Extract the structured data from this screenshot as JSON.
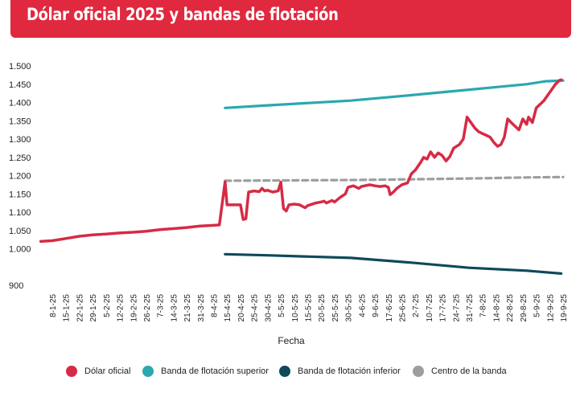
{
  "title": "Dólar oficial 2025 y bandas de flotación",
  "colors": {
    "header_bg": "#e0283f",
    "dolar_oficial": "#d62b45",
    "banda_superior": "#2aa8b0",
    "banda_inferior": "#0e4a5a",
    "centro": "#9e9e9e"
  },
  "chart_data": {
    "type": "line",
    "xlabel": "Fecha",
    "ylabel": "",
    "ylim": [
      900,
      1500
    ],
    "yticks": [
      "900",
      "1.000",
      "1.050",
      "1.100",
      "1.150",
      "1.200",
      "1.250",
      "1.300",
      "1.350",
      "1.400",
      "1.450",
      "1.500"
    ],
    "xticks": [
      "8-1-25",
      "15-1-25",
      "22-1-25",
      "29-1-25",
      "5-2-25",
      "12-2-25",
      "19-2-25",
      "26-2-25",
      "7-3-25",
      "14-3-25",
      "21-3-25",
      "31-3-25",
      "8-4-25",
      "15-4-25",
      "20-4-25",
      "25-4-25",
      "30-4-25",
      "5-5-25",
      "10-5-25",
      "15-5-25",
      "20-5-25",
      "25-5-25",
      "30-5-25",
      "4-6-25",
      "9-6-25",
      "17-6-25",
      "25-6-25",
      "2-7-25",
      "10-7-25",
      "17-7-25",
      "24-7-25",
      "31-7-25",
      "7-8-25",
      "14-8-25",
      "22-8-25",
      "29-8-25",
      "5-9-25",
      "12-9-25",
      "19-9-25"
    ],
    "grid": false,
    "legend_position": "bottom",
    "series": [
      {
        "name": "Dólar oficial",
        "points": [
          [
            "2-1-25",
            1020
          ],
          [
            "8-1-25",
            1022
          ],
          [
            "15-1-25",
            1028
          ],
          [
            "22-1-25",
            1034
          ],
          [
            "29-1-25",
            1038
          ],
          [
            "5-2-25",
            1040
          ],
          [
            "12-2-25",
            1043
          ],
          [
            "19-2-25",
            1045
          ],
          [
            "26-2-25",
            1048
          ],
          [
            "7-3-25",
            1052
          ],
          [
            "14-3-25",
            1055
          ],
          [
            "21-3-25",
            1058
          ],
          [
            "31-3-25",
            1062
          ],
          [
            "8-4-25",
            1064
          ],
          [
            "11-4-25",
            1065
          ],
          [
            "14-4-25",
            1183
          ],
          [
            "15-4-25",
            1120
          ],
          [
            "18-4-25",
            1120
          ],
          [
            "20-4-25",
            1120
          ],
          [
            "21-4-25",
            1080
          ],
          [
            "22-4-25",
            1082
          ],
          [
            "23-4-25",
            1155
          ],
          [
            "25-4-25",
            1158
          ],
          [
            "27-4-25",
            1156
          ],
          [
            "28-4-25",
            1165
          ],
          [
            "29-4-25",
            1158
          ],
          [
            "30-4-25",
            1160
          ],
          [
            "2-5-25",
            1155
          ],
          [
            "4-5-25",
            1158
          ],
          [
            "5-5-25",
            1182
          ],
          [
            "6-5-25",
            1110
          ],
          [
            "7-5-25",
            1103
          ],
          [
            "8-5-25",
            1120
          ],
          [
            "10-5-25",
            1122
          ],
          [
            "12-5-25",
            1120
          ],
          [
            "14-5-25",
            1112
          ],
          [
            "15-5-25",
            1118
          ],
          [
            "18-5-25",
            1125
          ],
          [
            "20-5-25",
            1128
          ],
          [
            "21-5-25",
            1130
          ],
          [
            "22-5-25",
            1125
          ],
          [
            "24-5-25",
            1132
          ],
          [
            "25-5-25",
            1128
          ],
          [
            "27-5-25",
            1140
          ],
          [
            "29-5-25",
            1150
          ],
          [
            "30-5-25",
            1168
          ],
          [
            "1-6-25",
            1172
          ],
          [
            "3-6-25",
            1165
          ],
          [
            "4-6-25",
            1170
          ],
          [
            "7-6-25",
            1175
          ],
          [
            "9-6-25",
            1172
          ],
          [
            "12-6-25",
            1170
          ],
          [
            "15-6-25",
            1172
          ],
          [
            "17-6-25",
            1168
          ],
          [
            "18-6-25",
            1148
          ],
          [
            "20-6-25",
            1155
          ],
          [
            "22-6-25",
            1165
          ],
          [
            "25-6-25",
            1175
          ],
          [
            "28-6-25",
            1180
          ],
          [
            "30-6-25",
            1205
          ],
          [
            "2-7-25",
            1215
          ],
          [
            "5-7-25",
            1235
          ],
          [
            "7-7-25",
            1250
          ],
          [
            "9-7-25",
            1245
          ],
          [
            "11-7-25",
            1265
          ],
          [
            "13-7-25",
            1250
          ],
          [
            "15-7-25",
            1262
          ],
          [
            "17-7-25",
            1255
          ],
          [
            "19-7-25",
            1240
          ],
          [
            "21-7-25",
            1252
          ],
          [
            "23-7-25",
            1275
          ],
          [
            "26-7-25",
            1285
          ],
          [
            "28-7-25",
            1300
          ],
          [
            "30-7-25",
            1360
          ],
          [
            "1-8-25",
            1345
          ],
          [
            "3-8-25",
            1330
          ],
          [
            "5-8-25",
            1320
          ],
          [
            "7-8-25",
            1315
          ],
          [
            "9-8-25",
            1310
          ],
          [
            "11-8-25",
            1305
          ],
          [
            "13-8-25",
            1290
          ],
          [
            "15-8-25",
            1280
          ],
          [
            "17-8-25",
            1285
          ],
          [
            "19-8-25",
            1305
          ],
          [
            "21-8-25",
            1355
          ],
          [
            "23-8-25",
            1345
          ],
          [
            "25-8-25",
            1335
          ],
          [
            "27-8-25",
            1325
          ],
          [
            "29-8-25",
            1355
          ],
          [
            "31-8-25",
            1340
          ],
          [
            "1-9-25",
            1360
          ],
          [
            "3-9-25",
            1345
          ],
          [
            "5-9-25",
            1385
          ],
          [
            "7-9-25",
            1395
          ],
          [
            "9-9-25",
            1405
          ],
          [
            "11-9-25",
            1420
          ],
          [
            "13-9-25",
            1435
          ],
          [
            "15-9-25",
            1450
          ],
          [
            "17-9-25",
            1460
          ],
          [
            "18-9-25",
            1462
          ]
        ]
      },
      {
        "name": "Banda de flotación superior",
        "points": [
          [
            "14-4-25",
            1385
          ],
          [
            "30-4-25",
            1392
          ],
          [
            "31-5-25",
            1405
          ],
          [
            "30-6-25",
            1420
          ],
          [
            "31-7-25",
            1435
          ],
          [
            "31-8-25",
            1450
          ],
          [
            "10-9-25",
            1458
          ],
          [
            "19-9-25",
            1460
          ]
        ]
      },
      {
        "name": "Banda de flotación inferior",
        "points": [
          [
            "14-4-25",
            985
          ],
          [
            "30-4-25",
            982
          ],
          [
            "31-5-25",
            975
          ],
          [
            "30-6-25",
            962
          ],
          [
            "31-7-25",
            948
          ],
          [
            "31-8-25",
            940
          ],
          [
            "18-9-25",
            932
          ]
        ]
      },
      {
        "name": "Centro de la banda",
        "points": [
          [
            "14-4-25",
            1186
          ],
          [
            "31-5-25",
            1188
          ],
          [
            "30-6-25",
            1190
          ],
          [
            "31-7-25",
            1192
          ],
          [
            "31-8-25",
            1195
          ],
          [
            "19-9-25",
            1196
          ]
        ]
      }
    ]
  },
  "legend": [
    {
      "label": "Dólar oficial"
    },
    {
      "label": "Banda de flotación superior"
    },
    {
      "label": "Banda de flotación inferior"
    },
    {
      "label": "Centro de la banda"
    }
  ]
}
